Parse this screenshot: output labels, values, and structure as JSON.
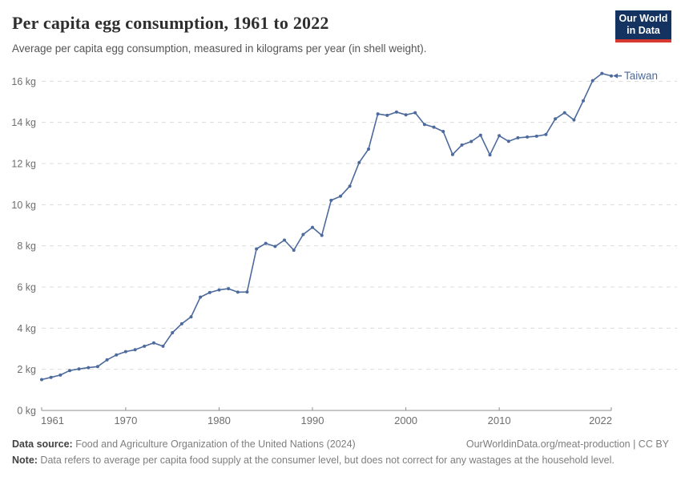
{
  "header": {
    "title": "Per capita egg consumption, 1961 to 2022",
    "subtitle": "Average per capita egg consumption, measured in kilograms per year (in shell weight).",
    "logo_line1": "Our World",
    "logo_line2": "in Data"
  },
  "chart_data": {
    "type": "line",
    "title": "Per capita egg consumption, 1961 to 2022",
    "xlabel": "",
    "ylabel": "",
    "xlim": [
      1961,
      2022
    ],
    "ylim": [
      0,
      16
    ],
    "x_ticks": [
      1961,
      1970,
      1980,
      1990,
      2000,
      2010,
      2022
    ],
    "y_ticks": [
      0,
      2,
      4,
      6,
      8,
      10,
      12,
      14,
      16
    ],
    "y_tick_suffix": " kg",
    "grid": "horizontal-dashed",
    "legend_position": "end-of-line",
    "series": [
      {
        "name": "Taiwan",
        "color": "#4c6a9c",
        "x": [
          1961,
          1962,
          1963,
          1964,
          1965,
          1966,
          1967,
          1968,
          1969,
          1970,
          1971,
          1972,
          1973,
          1974,
          1975,
          1976,
          1977,
          1978,
          1979,
          1980,
          1981,
          1982,
          1983,
          1984,
          1985,
          1986,
          1987,
          1988,
          1989,
          1990,
          1991,
          1992,
          1993,
          1994,
          1995,
          1996,
          1997,
          1998,
          1999,
          2000,
          2001,
          2002,
          2003,
          2004,
          2005,
          2006,
          2007,
          2008,
          2009,
          2010,
          2011,
          2012,
          2013,
          2014,
          2015,
          2016,
          2017,
          2018,
          2019,
          2020,
          2021,
          2022
        ],
        "values": [
          1.5,
          1.61,
          1.72,
          1.94,
          2.02,
          2.08,
          2.13,
          2.46,
          2.7,
          2.86,
          2.95,
          3.12,
          3.28,
          3.12,
          3.78,
          4.21,
          4.55,
          5.51,
          5.73,
          5.86,
          5.92,
          5.75,
          5.76,
          7.85,
          8.12,
          7.97,
          8.28,
          7.79,
          8.55,
          8.9,
          8.51,
          10.21,
          10.41,
          10.9,
          12.05,
          12.7,
          14.41,
          14.34,
          14.5,
          14.37,
          14.47,
          13.9,
          13.77,
          13.56,
          12.44,
          12.9,
          13.07,
          13.38,
          12.42,
          13.35,
          13.08,
          13.25,
          13.29,
          13.33,
          13.41,
          14.17,
          14.47,
          14.12,
          15.05,
          16.03,
          16.38,
          16.26
        ]
      }
    ]
  },
  "footer": {
    "datasource_label": "Data source:",
    "datasource_text": " Food and Agriculture Organization of the United Nations (2024)",
    "credit": "OurWorldinData.org/meat-production | CC BY",
    "note_label": "Note:",
    "note_text": " Data refers to average per capita food supply at the consumer level, but does not correct for any wastages at the household level."
  },
  "colors": {
    "line": "#4c6a9c",
    "grid": "#dcdcdc",
    "axis": "#8f8f8f",
    "tick_text": "#6e6e6e",
    "logo_bg": "#153360",
    "logo_bar": "#d6392f"
  }
}
